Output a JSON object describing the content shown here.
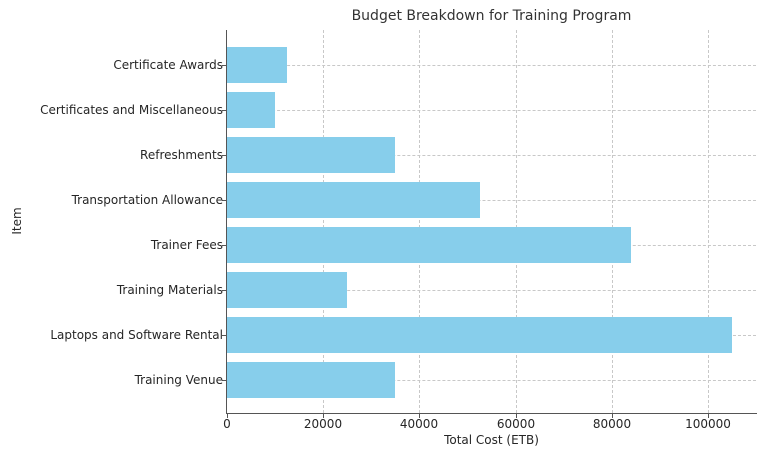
{
  "chart_data": {
    "type": "bar",
    "orientation": "horizontal",
    "title": "Budget Breakdown for Training Program",
    "xlabel": "Total Cost (ETB)",
    "ylabel": "Item",
    "categories": [
      "Training Venue",
      "Laptops and Software Rental",
      "Training Materials",
      "Trainer Fees",
      "Transportation Allowance",
      "Refreshments",
      "Certificates and Miscellaneous",
      "Certificate Awards"
    ],
    "values": [
      35000,
      105000,
      25000,
      84000,
      52500,
      35000,
      10000,
      12500
    ],
    "xlim": [
      0,
      110000
    ],
    "xticks": [
      "0",
      "20000",
      "40000",
      "60000",
      "80000",
      "100000"
    ],
    "grid": true,
    "bar_color": "#87ceeb"
  }
}
